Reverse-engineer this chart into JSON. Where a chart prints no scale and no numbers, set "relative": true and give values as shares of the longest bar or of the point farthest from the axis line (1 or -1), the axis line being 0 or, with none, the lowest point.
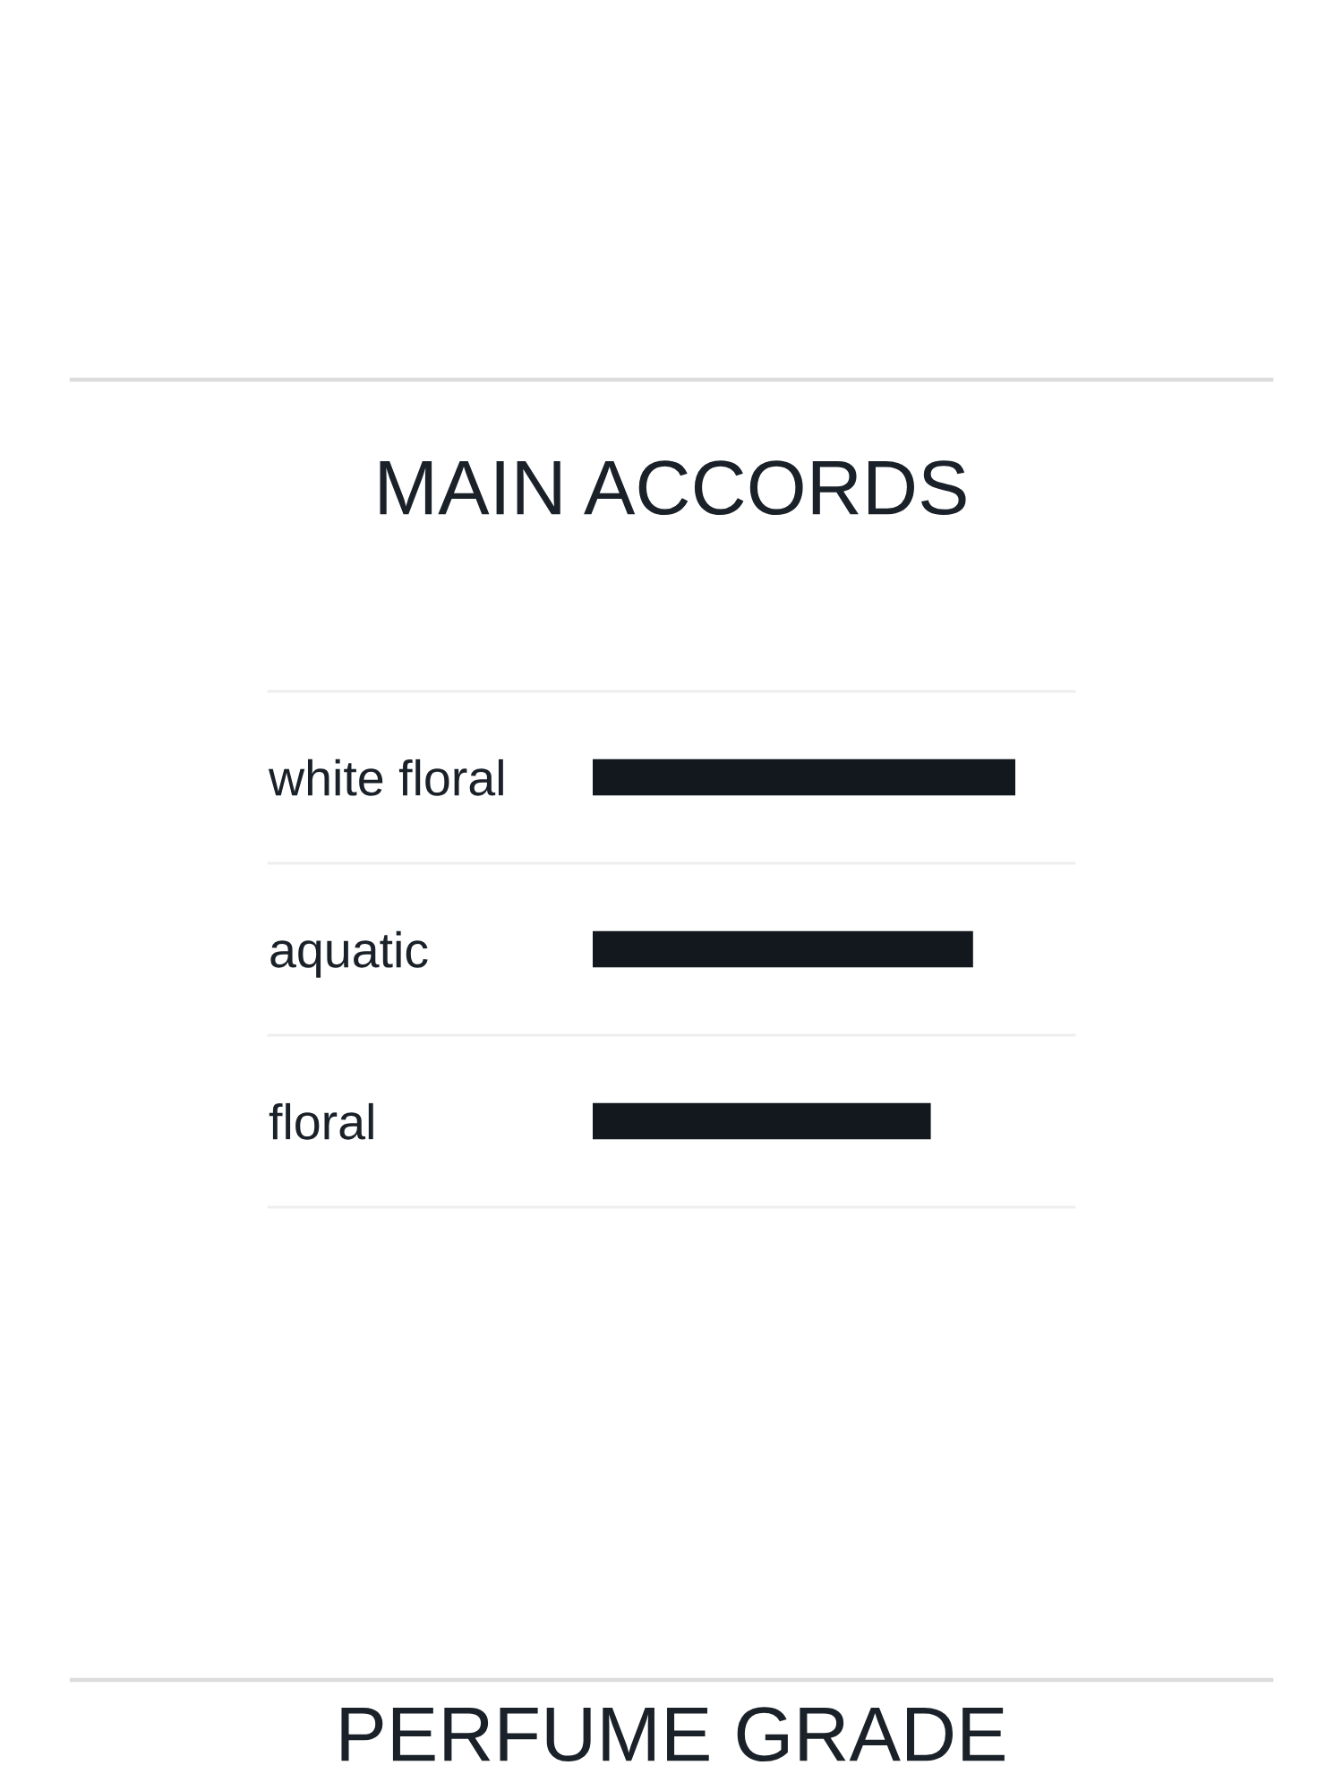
{
  "chart_data": {
    "type": "bar",
    "orientation": "horizontal",
    "relative": true,
    "title": "MAIN ACCORDS",
    "categories": [
      "white floral",
      "aquatic",
      "floral"
    ],
    "values": [
      1,
      0.9,
      0.8
    ],
    "color": "#13181e",
    "annotations": [
      "PERFUME GRADE"
    ]
  }
}
